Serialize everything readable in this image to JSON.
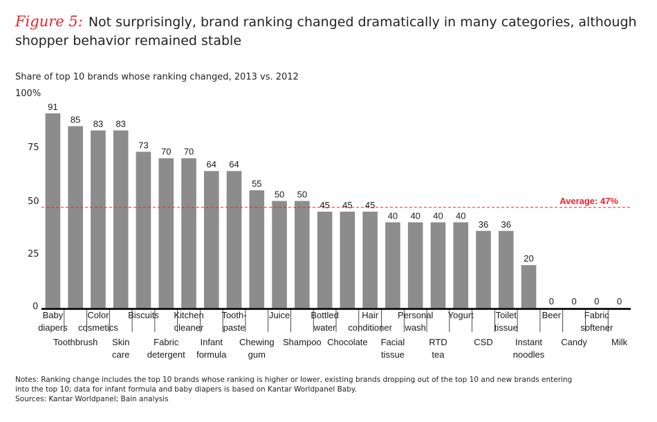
{
  "figure": {
    "label": "Figure 5:",
    "title": "Not surprisingly, brand ranking changed dramatically in many categories, although shopper behavior remained stable"
  },
  "chart_data": {
    "type": "bar",
    "title": "Share of top 10 brands whose ranking changed, 2013 vs. 2012",
    "xlabel": "",
    "ylabel": "",
    "ylim": [
      0,
      100
    ],
    "yticks": [
      "0",
      "25",
      "50",
      "75",
      "100%"
    ],
    "categories": [
      [
        "Baby",
        "diapers"
      ],
      [
        "Toothbrush"
      ],
      [
        "Color",
        "cosmetics"
      ],
      [
        "Skin",
        "care"
      ],
      [
        "Biscuits"
      ],
      [
        "Fabric",
        "detergent"
      ],
      [
        "Kitchen",
        "cleaner"
      ],
      [
        "Infant",
        "formula"
      ],
      [
        "Tooth-",
        "paste"
      ],
      [
        "Chewing",
        "gum"
      ],
      [
        "Juice"
      ],
      [
        "Shampoo"
      ],
      [
        "Bottled",
        "water"
      ],
      [
        "Chocolate"
      ],
      [
        "Hair",
        "conditioner"
      ],
      [
        "Facial",
        "tissue"
      ],
      [
        "Personal",
        "wash"
      ],
      [
        "RTD",
        "tea"
      ],
      [
        "Yogurt"
      ],
      [
        "CSD"
      ],
      [
        "Toilet",
        "tissue"
      ],
      [
        "Instant",
        "noodles"
      ],
      [
        "Beer"
      ],
      [
        "Candy"
      ],
      [
        "Fabric",
        "softener"
      ],
      [
        "Milk"
      ]
    ],
    "values": [
      91,
      85,
      83,
      83,
      73,
      70,
      70,
      64,
      64,
      55,
      50,
      50,
      45,
      45,
      45,
      40,
      40,
      40,
      40,
      36,
      36,
      20,
      0,
      0,
      0,
      0
    ],
    "average": {
      "value": 47,
      "label": "Average: 47%"
    },
    "bar_color": "#8c8c8c",
    "average_color": "#e8222e",
    "grid": false
  },
  "notes": [
    "Notes: Ranking change includes the top 10 brands whose ranking is higher or lower, existing brands dropping out of the top 10 and new brands entering",
    "into the top 10; data for infant formula and baby diapers is based on Kantar Worldpanel Baby.",
    "Sources: Kantar Worldpanel; Bain analysis"
  ]
}
